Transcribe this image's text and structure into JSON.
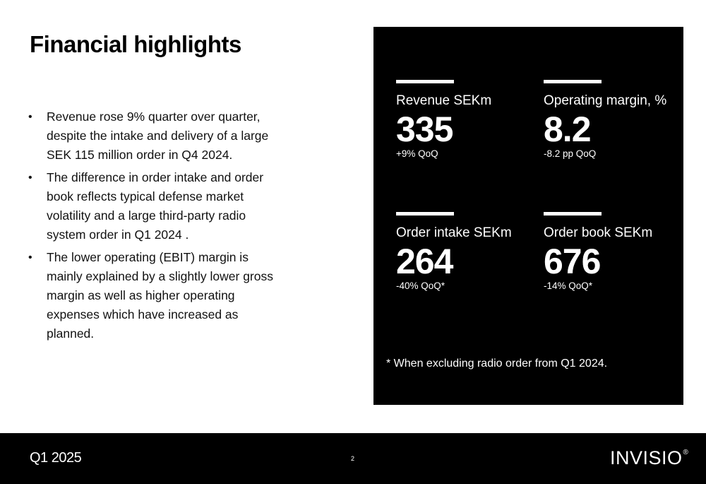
{
  "slide": {
    "title": "Financial highlights",
    "bullets": [
      "Revenue rose 9% quarter over quarter, despite the intake and delivery of a large SEK 115 million order in Q4 2024.",
      "The difference in order intake and order book reflects typical defense market volatility and a large third-party radio system order in Q1 2024 .",
      "The lower operating (EBIT) margin is mainly explained by a slightly lower gross margin as well as higher operating expenses which have increased as planned."
    ]
  },
  "kpis": [
    {
      "label": "Revenue SEKm",
      "value": "335",
      "change": "+9% QoQ"
    },
    {
      "label": "Operating margin, %",
      "value": "8.2",
      "change": "-8.2 pp QoQ"
    },
    {
      "label": "Order intake SEKm",
      "value": "264",
      "change": "-40% QoQ*"
    },
    {
      "label": "Order book SEKm",
      "value": "676",
      "change": "-14% QoQ*"
    }
  ],
  "footnote": "* When excluding radio order from Q1 2024.",
  "footer": {
    "period": "Q1 2025",
    "page_number": "2",
    "logo_text": "INVISIO",
    "logo_mark": "®"
  },
  "colors": {
    "panel_background": "#000000",
    "footer_background": "#000000",
    "page_background": "#ffffff"
  }
}
